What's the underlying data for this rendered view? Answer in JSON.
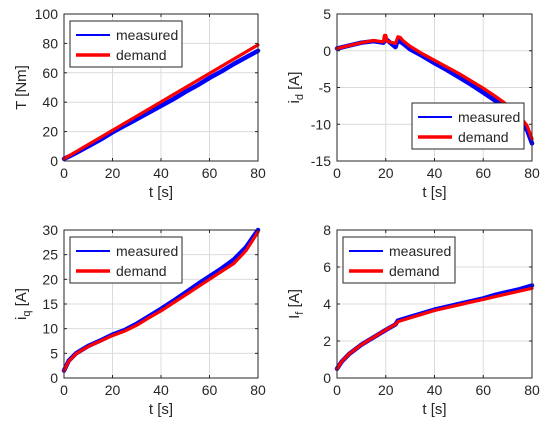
{
  "colors": {
    "measured": "#0000ff",
    "demand": "#ff0000",
    "grid": "#dcdcdc",
    "axis": "#262626"
  },
  "chart_data": [
    {
      "type": "line",
      "xlabel": "t [s]",
      "ylabel": "T [Nm]",
      "ylabel_main": "T [Nm]",
      "ylabel_sub": "",
      "ylabel_after": "",
      "xlim": [
        0,
        80
      ],
      "ylim": [
        0,
        100
      ],
      "xticks": [
        0,
        20,
        40,
        60,
        80
      ],
      "yticks": [
        0,
        20,
        40,
        60,
        80,
        100
      ],
      "grid": true,
      "legend_position": "top-left",
      "series": [
        {
          "name": "measured",
          "color": "#0000ff",
          "x": [
            0,
            2,
            5,
            10,
            15,
            20,
            25,
            30,
            35,
            40,
            45,
            50,
            55,
            60,
            65,
            70,
            75,
            80
          ],
          "y": [
            1.5,
            3,
            5.5,
            10,
            14.5,
            19.5,
            24,
            28.5,
            33,
            37.5,
            42,
            47,
            51.5,
            56.5,
            61,
            66,
            70.5,
            75
          ]
        },
        {
          "name": "demand",
          "color": "#ff0000",
          "x": [
            0,
            80
          ],
          "y": [
            1.5,
            79
          ]
        }
      ]
    },
    {
      "type": "line",
      "xlabel": "t [s]",
      "ylabel": "i_d [A]",
      "ylabel_main": "i",
      "ylabel_sub": "d",
      "ylabel_after": " [A]",
      "xlim": [
        0,
        80
      ],
      "ylim": [
        -15,
        5
      ],
      "xticks": [
        0,
        20,
        40,
        60,
        80
      ],
      "yticks": [
        -15,
        -10,
        -5,
        0,
        5
      ],
      "grid": true,
      "legend_position": "bottom-right",
      "series": [
        {
          "name": "measured",
          "color": "#0000ff",
          "x": [
            0,
            5,
            10,
            15,
            19,
            20,
            24,
            25,
            26,
            27,
            30,
            35,
            40,
            45,
            50,
            55,
            60,
            65,
            70,
            73,
            75,
            78,
            80
          ],
          "y": [
            0.3,
            0.7,
            1.1,
            1.3,
            1.1,
            1.6,
            0.5,
            1.5,
            1.2,
            1.0,
            0.2,
            -0.7,
            -1.7,
            -2.6,
            -3.6,
            -4.6,
            -5.7,
            -6.8,
            -8.1,
            -8.8,
            -9.6,
            -10.8,
            -12.6
          ]
        },
        {
          "name": "demand",
          "color": "#ff0000",
          "x": [
            0,
            5,
            10,
            15,
            19,
            19.5,
            20,
            20.5,
            24,
            25,
            26,
            27,
            30,
            35,
            40,
            45,
            50,
            55,
            60,
            65,
            70,
            73,
            75,
            78,
            80
          ],
          "y": [
            0.3,
            0.7,
            1.1,
            1.4,
            1.2,
            2.1,
            2.1,
            1.3,
            1.0,
            1.9,
            1.8,
            1.4,
            0.6,
            -0.4,
            -1.3,
            -2.2,
            -3.1,
            -4.1,
            -5.1,
            -6.2,
            -7.4,
            -8.1,
            -8.9,
            -10.2,
            -12.0
          ]
        }
      ]
    },
    {
      "type": "line",
      "xlabel": "t [s]",
      "ylabel": "i_q [A]",
      "ylabel_main": "i",
      "ylabel_sub": "q",
      "ylabel_after": " [A]",
      "xlim": [
        0,
        80
      ],
      "ylim": [
        0,
        30
      ],
      "xticks": [
        0,
        20,
        40,
        60,
        80
      ],
      "yticks": [
        0,
        5,
        10,
        15,
        20,
        25,
        30
      ],
      "grid": true,
      "legend_position": "top-left",
      "series": [
        {
          "name": "measured",
          "color": "#0000ff",
          "x": [
            0,
            2,
            5,
            10,
            15,
            20,
            25,
            30,
            35,
            40,
            45,
            50,
            55,
            60,
            65,
            70,
            75,
            80
          ],
          "y": [
            1.5,
            3.5,
            5.0,
            6.5,
            7.6,
            8.8,
            9.7,
            11.0,
            12.5,
            14.0,
            15.6,
            17.3,
            19.0,
            20.6,
            22.2,
            24.0,
            26.5,
            30.0
          ]
        },
        {
          "name": "demand",
          "color": "#ff0000",
          "x": [
            0,
            2,
            5,
            10,
            15,
            20,
            25,
            30,
            35,
            40,
            45,
            50,
            55,
            60,
            65,
            70,
            75,
            80
          ],
          "y": [
            1.5,
            3.4,
            4.9,
            6.4,
            7.5,
            8.6,
            9.5,
            10.7,
            12.2,
            13.6,
            15.2,
            16.8,
            18.4,
            20.0,
            21.6,
            23.2,
            25.8,
            29.6
          ]
        }
      ]
    },
    {
      "type": "line",
      "xlabel": "t [s]",
      "ylabel": "I_f [A]",
      "ylabel_main": "I",
      "ylabel_sub": "f",
      "ylabel_after": " [A]",
      "xlim": [
        0,
        80
      ],
      "ylim": [
        0,
        8
      ],
      "xticks": [
        0,
        20,
        40,
        60,
        80
      ],
      "yticks": [
        0,
        2,
        4,
        6,
        8
      ],
      "grid": true,
      "legend_position": "top-left",
      "series": [
        {
          "name": "measured",
          "color": "#0000ff",
          "x": [
            0,
            2,
            5,
            10,
            15,
            20,
            24,
            25,
            30,
            35,
            40,
            45,
            50,
            55,
            60,
            65,
            70,
            75,
            80
          ],
          "y": [
            0.5,
            0.9,
            1.3,
            1.8,
            2.2,
            2.6,
            2.9,
            3.1,
            3.3,
            3.5,
            3.7,
            3.85,
            4.0,
            4.15,
            4.3,
            4.5,
            4.65,
            4.8,
            5.0
          ]
        },
        {
          "name": "demand",
          "color": "#ff0000",
          "x": [
            0,
            2,
            5,
            10,
            15,
            20,
            24,
            25,
            30,
            35,
            40,
            45,
            50,
            55,
            60,
            65,
            70,
            75,
            80
          ],
          "y": [
            0.5,
            0.9,
            1.3,
            1.8,
            2.2,
            2.6,
            2.9,
            3.05,
            3.25,
            3.45,
            3.65,
            3.8,
            3.95,
            4.1,
            4.25,
            4.4,
            4.55,
            4.7,
            4.85
          ]
        }
      ]
    }
  ]
}
